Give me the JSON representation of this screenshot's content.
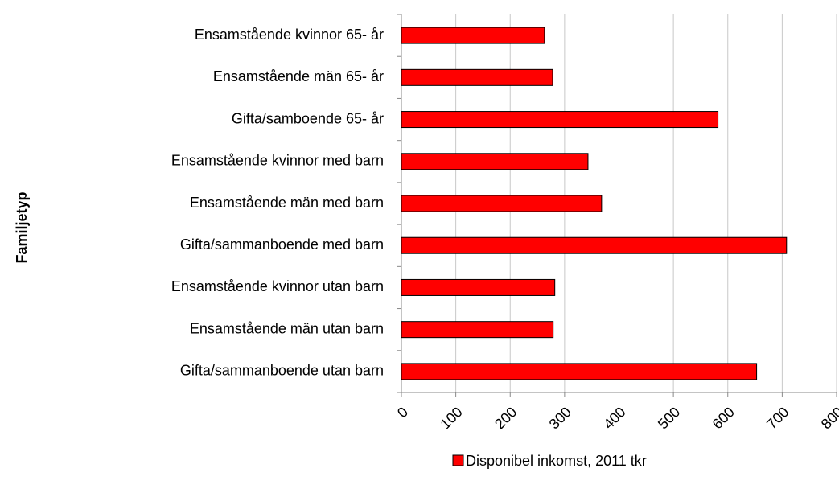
{
  "chart_data": {
    "type": "bar",
    "orientation": "horizontal",
    "y_label": "Familjetyp",
    "categories": [
      "Ensamstående kvinnor 65- år",
      "Ensamstående män 65- år",
      "Gifta/samboende 65- år",
      "Ensamstående kvinnor med barn",
      "Ensamstående män med barn",
      "Gifta/sammanboende med barn",
      "Ensamstående kvinnor utan barn",
      "Ensamstående män utan barn",
      "Gifta/sammanboende utan barn"
    ],
    "series": [
      {
        "name": "Disponibel inkomst, 2011 tkr",
        "color": "#ff0000",
        "values": [
          263,
          278,
          582,
          343,
          368,
          708,
          282,
          279,
          653
        ]
      }
    ],
    "xlim": [
      0,
      800
    ],
    "xticks": [
      0,
      100,
      200,
      300,
      400,
      500,
      600,
      700,
      800
    ],
    "grid": true,
    "legend": "bottom"
  }
}
